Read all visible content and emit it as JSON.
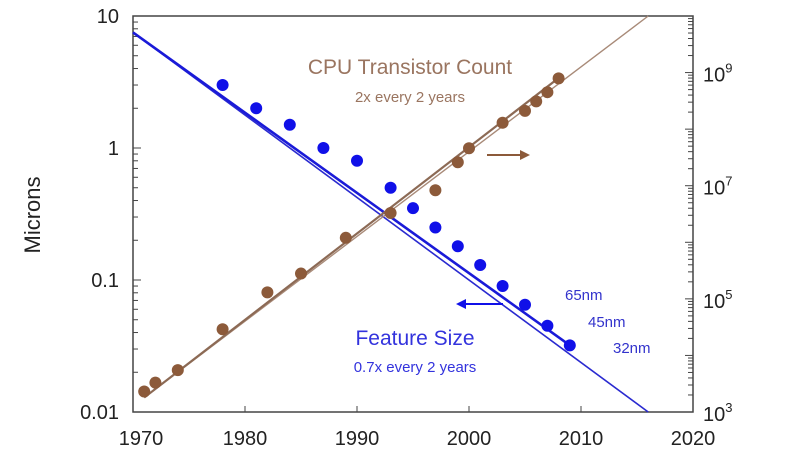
{
  "chart_data": {
    "type": "scatter",
    "title": "",
    "xlabel": "",
    "ylabel": "Microns",
    "xlim": [
      1970,
      2020
    ],
    "ylim": [
      0.01,
      10
    ],
    "y_scale": "log",
    "y2lim": [
      1000,
      10000000000
    ],
    "y2_scale": "log",
    "x_ticks": [
      "1970",
      "1980",
      "1990",
      "2000",
      "2010",
      "2020"
    ],
    "y_ticks": [
      "10",
      "1",
      "0.1",
      "0.01"
    ],
    "y2_ticks": [
      {
        "base": "10",
        "exp": "9",
        "value": 1000000000
      },
      {
        "base": "10",
        "exp": "7",
        "value": 10000000
      },
      {
        "base": "10",
        "exp": "5",
        "value": 100000
      },
      {
        "base": "10",
        "exp": "3",
        "value": 1000
      }
    ],
    "grid": false,
    "series": [
      {
        "name": "Feature Size",
        "axis": "left",
        "color": "#1010e8",
        "x": [
          1978,
          1981,
          1984,
          1987,
          1990,
          1993,
          1995,
          1997,
          1999,
          2001,
          2003,
          2005,
          2007,
          2009
        ],
        "y": [
          3.0,
          2.0,
          1.5,
          1.0,
          0.8,
          0.5,
          0.35,
          0.25,
          0.18,
          0.13,
          0.09,
          0.065,
          0.045,
          0.032
        ],
        "trend": {
          "x": [
            1970,
            2016
          ],
          "y": [
            7.5,
            0.01
          ]
        }
      },
      {
        "name": "CPU Transistor Count",
        "axis": "right",
        "color": "#8c5a3a",
        "x": [
          1971,
          1972,
          1974,
          1978,
          1982,
          1985,
          1989,
          1993,
          1997,
          1999,
          2000,
          2003,
          2005,
          2006,
          2007,
          2008
        ],
        "y": [
          2300,
          3300,
          5500,
          29000,
          130000,
          280000,
          1200000,
          3300000,
          8300000,
          26000000,
          46000000,
          130000000,
          210000000,
          310000000,
          450000000,
          790000000
        ],
        "trend": {
          "x": [
            1971,
            2016
          ],
          "y": [
            1800,
            10000000000
          ]
        }
      }
    ],
    "annotations": {
      "cpu_title": "CPU Transistor Count",
      "cpu_rate": "2x every 2 years",
      "feature_title": "Feature Size",
      "feature_rate": "0.7x every 2 years",
      "node_labels": [
        {
          "text": "65nm",
          "year": 2005
        },
        {
          "text": "45nm",
          "year": 2007
        },
        {
          "text": "32nm",
          "year": 2009
        }
      ]
    }
  }
}
